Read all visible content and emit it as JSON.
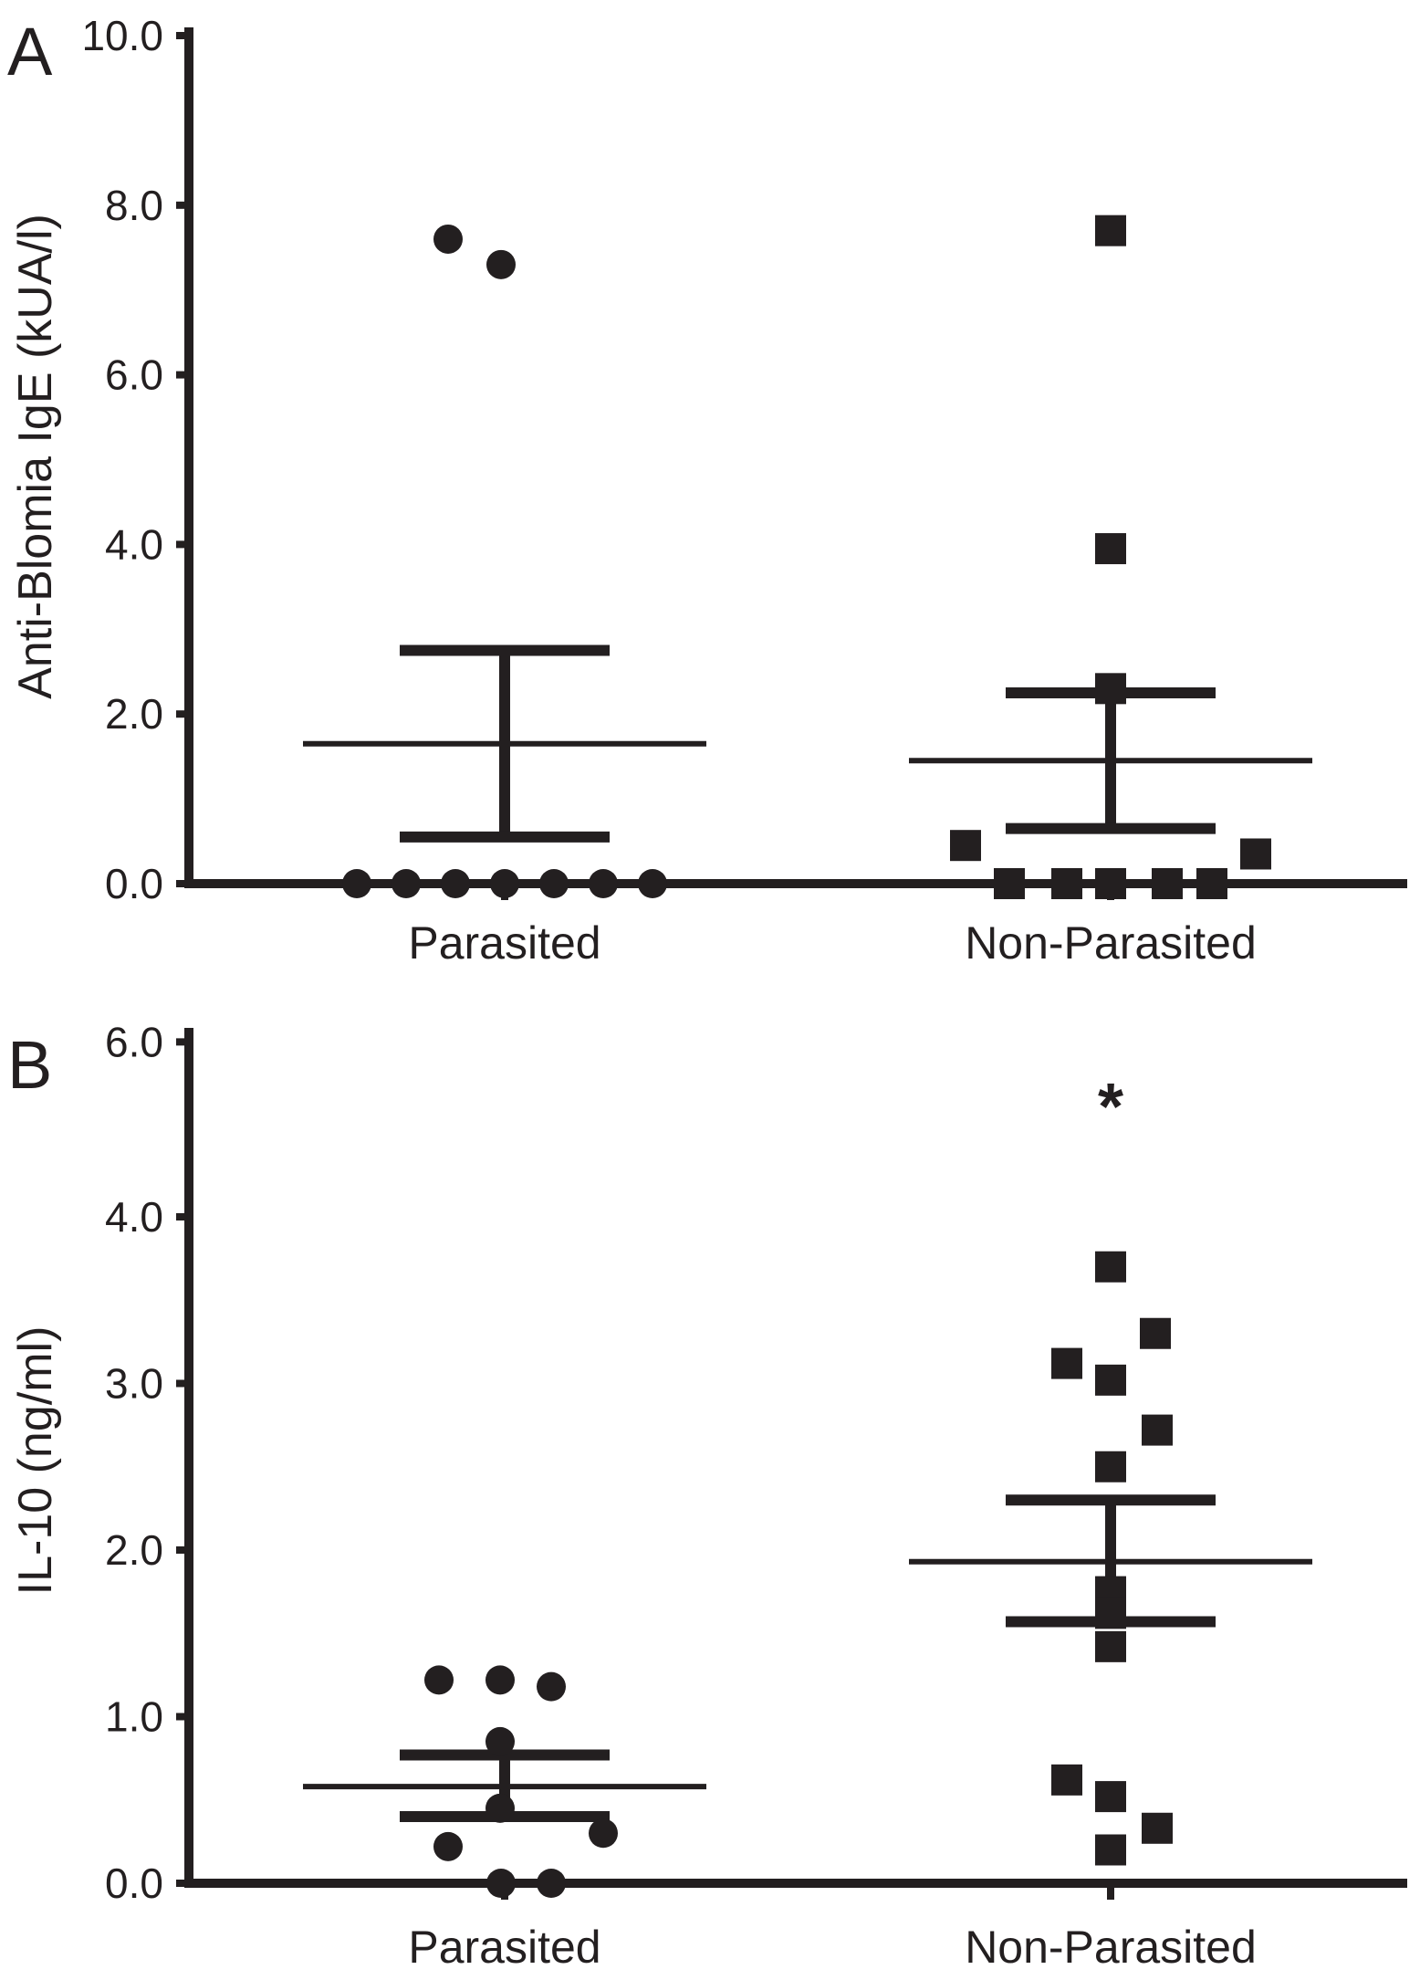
{
  "colors": {
    "marker": "#231f20",
    "axis": "#231f20",
    "text": "#231f20",
    "background": "#ffffff"
  },
  "chart_data": [
    {
      "type": "scatter",
      "panel_label": "A",
      "ylabel": "Anti-Blomia IgE (kUA/l)",
      "ylim": [
        0,
        10
      ],
      "grid": false,
      "yticks": [
        {
          "v": 0,
          "label": "0.0"
        },
        {
          "v": 2,
          "label": "2.0"
        },
        {
          "v": 4,
          "label": "4.0"
        },
        {
          "v": 6,
          "label": "6.0"
        },
        {
          "v": 8,
          "label": "8.0"
        },
        {
          "v": 10,
          "label": "10.0"
        }
      ],
      "categories": [
        "Parasited",
        "Non-Parasited"
      ],
      "groups": [
        {
          "name": "Parasited",
          "marker": "circle",
          "mean": 1.65,
          "sem_low": 0.55,
          "sem_high": 2.75,
          "points": [
            [
              -62,
              7.6
            ],
            [
              -4,
              7.3
            ],
            [
              -162,
              0
            ],
            [
              -108,
              0
            ],
            [
              -54,
              0
            ],
            [
              0,
              0
            ],
            [
              54,
              0
            ],
            [
              108,
              0
            ],
            [
              162,
              0
            ]
          ]
        },
        {
          "name": "Non-Parasited",
          "marker": "square",
          "mean": 1.45,
          "sem_low": 0.65,
          "sem_high": 2.25,
          "points": [
            [
              0,
              7.7
            ],
            [
              0,
              3.95
            ],
            [
              0,
              2.3
            ],
            [
              -159,
              0.45
            ],
            [
              159,
              0.35
            ],
            [
              -111,
              0
            ],
            [
              -48,
              0
            ],
            [
              0,
              0
            ],
            [
              62,
              0
            ],
            [
              111,
              0
            ]
          ]
        }
      ]
    },
    {
      "type": "scatter",
      "panel_label": "B",
      "ylabel": "IL-10 (ng/ml)",
      "ylim": [
        0,
        6
      ],
      "grid": false,
      "yticks": [
        {
          "v": 0,
          "label": "0.0"
        },
        {
          "v": 1,
          "label": "1.0"
        },
        {
          "v": 2,
          "label": "2.0"
        },
        {
          "v": 3,
          "label": "3.0"
        },
        {
          "v": 4,
          "label": "4.0"
        },
        {
          "v": 6,
          "label": "6.0"
        }
      ],
      "categories": [
        "Parasited",
        "Non-Parasited"
      ],
      "annotation": {
        "text": "*",
        "group": 1,
        "y": 5.0
      },
      "groups": [
        {
          "name": "Parasited",
          "marker": "circle",
          "mean": 0.58,
          "sem_low": 0.4,
          "sem_high": 0.77,
          "points": [
            [
              -72,
              1.22
            ],
            [
              -5,
              1.22
            ],
            [
              51,
              1.18
            ],
            [
              -5,
              0.85
            ],
            [
              -5,
              0.45
            ],
            [
              108,
              0.3
            ],
            [
              -62,
              0.22
            ],
            [
              -4,
              0.0
            ],
            [
              51,
              0.0
            ]
          ]
        },
        {
          "name": "Non-Parasited",
          "marker": "square",
          "mean": 1.93,
          "sem_low": 1.57,
          "sem_high": 2.3,
          "points": [
            [
              0,
              3.7
            ],
            [
              49,
              3.3
            ],
            [
              -48,
              3.12
            ],
            [
              0,
              3.02
            ],
            [
              51,
              2.72
            ],
            [
              0,
              2.5
            ],
            [
              0,
              1.75
            ],
            [
              0,
              1.62
            ],
            [
              0,
              1.42
            ],
            [
              -48,
              0.62
            ],
            [
              0,
              0.52
            ],
            [
              51,
              0.33
            ],
            [
              0,
              0.2
            ]
          ]
        }
      ]
    }
  ]
}
